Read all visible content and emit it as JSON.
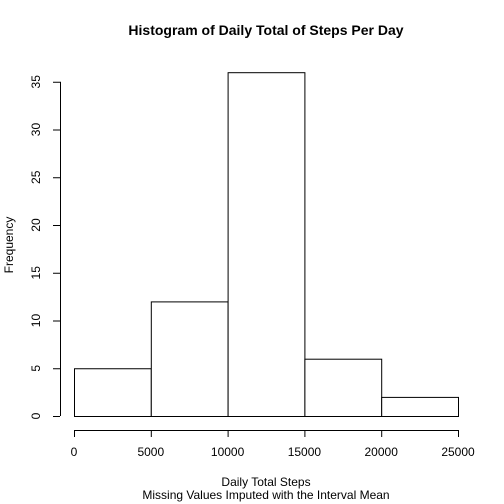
{
  "chart_data": {
    "type": "bar",
    "subtype": "histogram",
    "title": "Histogram of Daily Total of Steps Per Day",
    "xlabel": "Daily Total Steps",
    "xlabel_sub": "Missing Values Imputed with the Interval Mean",
    "ylabel": "Frequency",
    "bins": [
      {
        "from": 0,
        "to": 5000,
        "count": 5
      },
      {
        "from": 5000,
        "to": 10000,
        "count": 12
      },
      {
        "from": 10000,
        "to": 15000,
        "count": 36
      },
      {
        "from": 15000,
        "to": 20000,
        "count": 6
      },
      {
        "from": 20000,
        "to": 25000,
        "count": 2
      }
    ],
    "xlim": [
      0,
      25000
    ],
    "ylim": [
      0,
      36
    ],
    "xticks": [
      0,
      5000,
      10000,
      15000,
      20000,
      25000
    ],
    "yticks": [
      0,
      5,
      10,
      15,
      20,
      25,
      30,
      35
    ],
    "grid": false,
    "legend": "none",
    "colors": {
      "bar_fill": "#ffffff",
      "bar_stroke": "#000000",
      "text": "#000000"
    }
  }
}
